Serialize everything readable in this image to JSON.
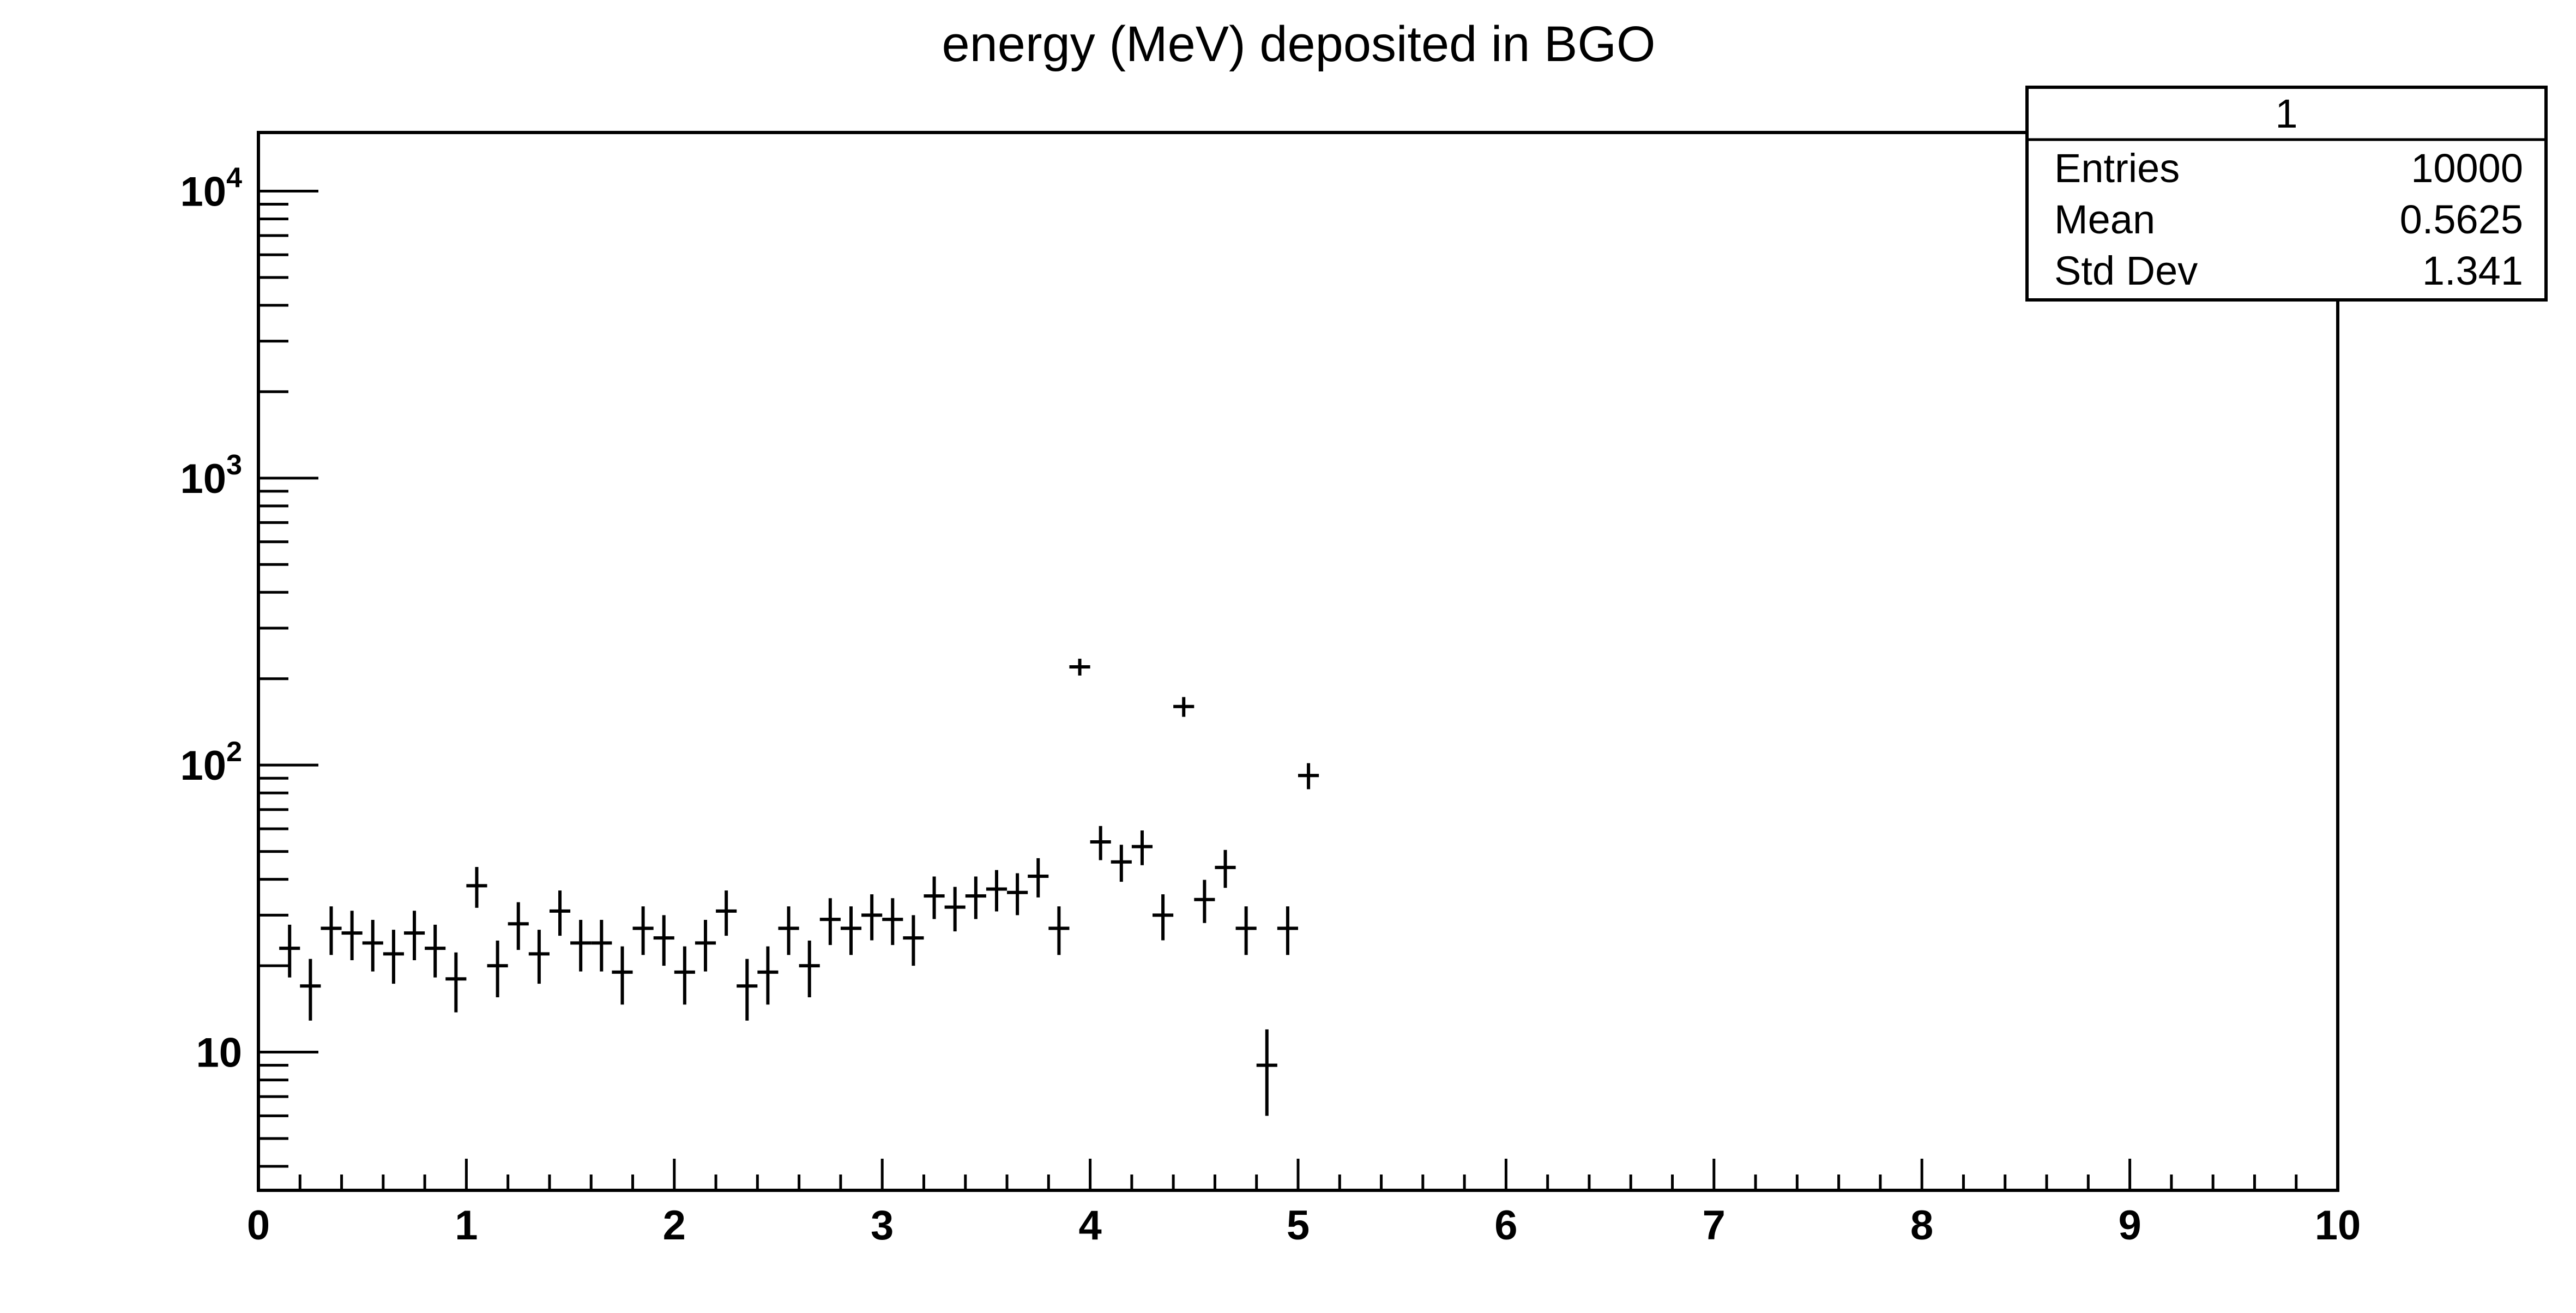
{
  "chart_data": {
    "type": "scatter",
    "title": "energy (MeV) deposited in BGO",
    "xlabel": "",
    "ylabel": "",
    "xlim": [
      0,
      10
    ],
    "ylim": [
      3.3,
      16000
    ],
    "yscale": "log",
    "grid": false,
    "x_tick_labels": [
      "0",
      "1",
      "2",
      "3",
      "4",
      "5",
      "6",
      "7",
      "8",
      "9",
      "10"
    ],
    "y_tick_labels": [
      {
        "value": 10,
        "base": "10",
        "exp": ""
      },
      {
        "value": 100,
        "base": "10",
        "exp": "2"
      },
      {
        "value": 1000,
        "base": "10",
        "exp": "3"
      },
      {
        "value": 10000,
        "base": "10",
        "exp": "4"
      }
    ],
    "stats_box": {
      "name": "1",
      "rows": [
        {
          "label": "Entries",
          "value": "10000"
        },
        {
          "label": "Mean",
          "value": "0.5625"
        },
        {
          "label": "Std Dev",
          "value": "1.341"
        }
      ],
      "placement": "top-right"
    },
    "series": [
      {
        "bin_width": 0.1,
        "x": [
          0.15,
          0.25,
          0.35,
          0.45,
          0.55,
          0.65,
          0.75,
          0.85,
          0.95,
          1.05,
          1.15,
          1.25,
          1.35,
          1.45,
          1.55,
          1.65,
          1.75,
          1.85,
          1.95,
          2.05,
          2.15,
          2.25,
          2.35,
          2.45,
          2.55,
          2.65,
          2.75,
          2.85,
          2.95,
          3.05,
          3.15,
          3.25,
          3.35,
          3.45,
          3.55,
          3.65,
          3.75,
          3.85,
          3.95,
          4.05,
          4.15,
          4.25,
          4.35,
          4.45,
          4.55,
          4.65,
          4.75,
          4.85,
          4.95,
          5.05
        ],
        "y": [
          23,
          17,
          27,
          26,
          24,
          22,
          26,
          23,
          18,
          38,
          20,
          28,
          22,
          31,
          24,
          24,
          19,
          27,
          25,
          19,
          24,
          31,
          17,
          19,
          27,
          20,
          29,
          27,
          30,
          29,
          25,
          35,
          32,
          35,
          37,
          36,
          41,
          27,
          220,
          54,
          46,
          52,
          30,
          160,
          34,
          44,
          27,
          9,
          27,
          92
        ]
      }
    ]
  }
}
